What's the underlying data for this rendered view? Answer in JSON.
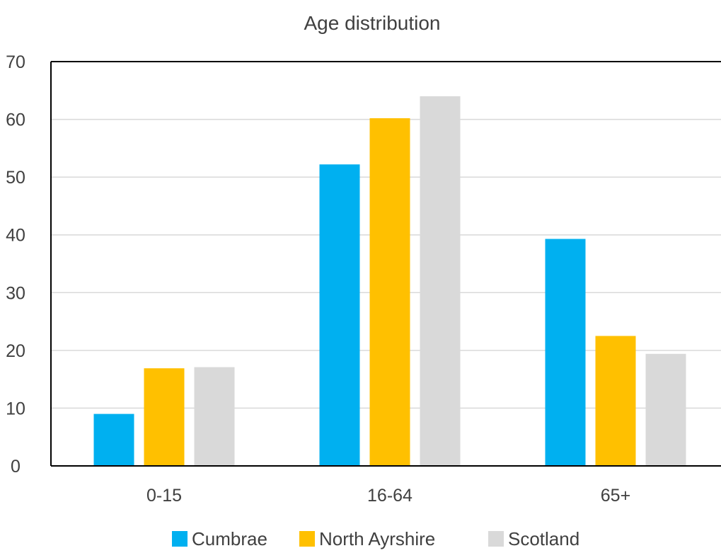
{
  "chart_data": {
    "type": "bar",
    "title": "Age distribution",
    "xlabel": "",
    "ylabel": "",
    "categories": [
      "0-15",
      "16-64",
      "65+"
    ],
    "series": [
      {
        "name": "Cumbrae",
        "color": "#00B0F0",
        "values": [
          9,
          52.2,
          39.3
        ]
      },
      {
        "name": "North Ayrshire",
        "color": "#FFC000",
        "values": [
          16.9,
          60.2,
          22.5
        ]
      },
      {
        "name": "Scotland",
        "color": "#D9D9D9",
        "values": [
          17.1,
          64,
          19.4
        ]
      }
    ],
    "ylim": [
      0,
      70
    ],
    "yticks": [
      0,
      10,
      20,
      30,
      40,
      50,
      60,
      70
    ],
    "grid": true,
    "legend_position": "bottom",
    "colors": {
      "gridline": "#D9D9D9",
      "axis": "#000000",
      "text": "#404040"
    }
  }
}
